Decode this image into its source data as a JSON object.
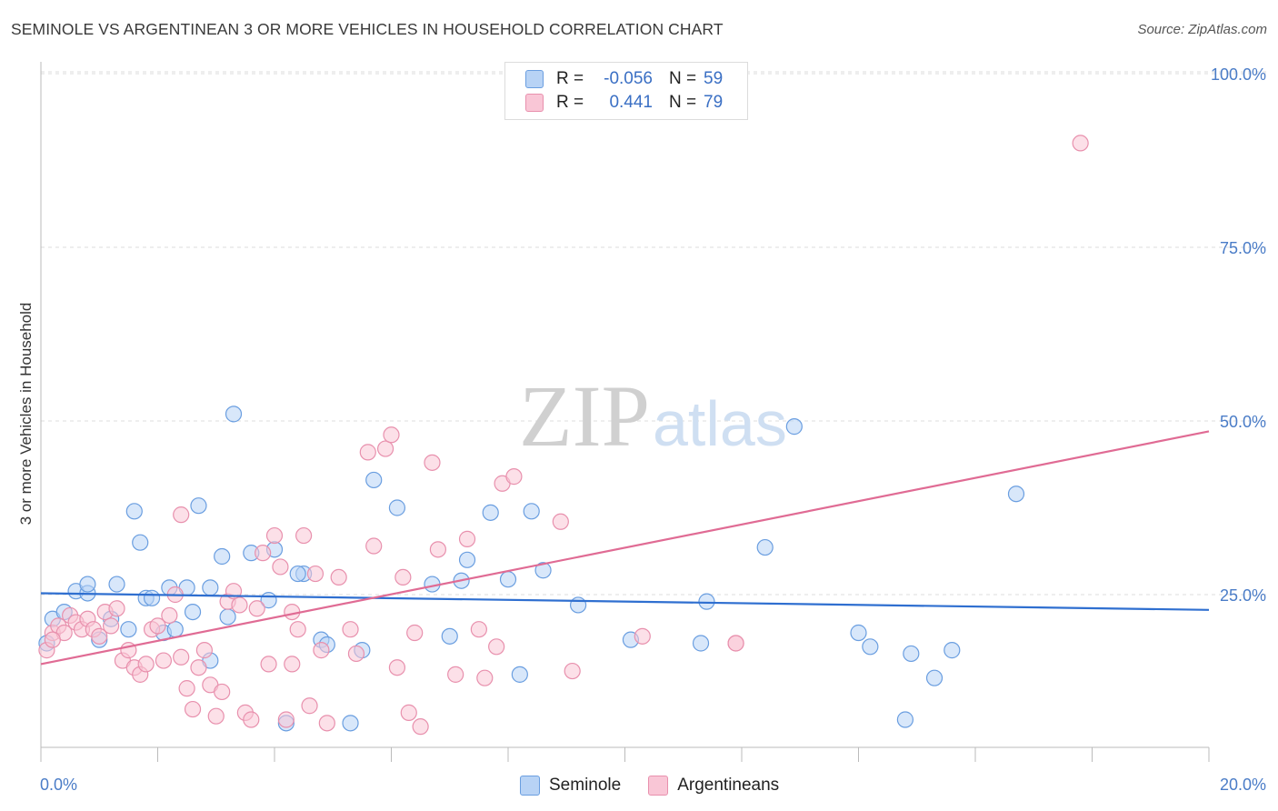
{
  "title": "SEMINOLE VS ARGENTINEAN 3 OR MORE VEHICLES IN HOUSEHOLD CORRELATION CHART",
  "source": "Source: ZipAtlas.com",
  "watermark": {
    "part1": "ZIP",
    "part2": "atlas"
  },
  "colors": {
    "seminole_fill": "#b8d3f5",
    "seminole_stroke": "#6a9ee0",
    "seminole_line": "#2f6fd0",
    "argentinean_fill": "#f9c6d6",
    "argentinean_stroke": "#e890ad",
    "argentinean_line": "#e06b94",
    "tick_color": "#4a7cc7"
  },
  "legend": {
    "rows": [
      {
        "r_label": "R =",
        "r_value": "-0.056",
        "n_label": "N =",
        "n_value": "59"
      },
      {
        "r_label": "R =",
        "r_value": "0.441",
        "n_label": "N =",
        "n_value": "79"
      }
    ]
  },
  "bottom_legend": {
    "seminole": "Seminole",
    "argentineans": "Argentineans"
  },
  "chart_data": {
    "type": "scatter",
    "ylabel": "3 or more Vehicles in Household",
    "xlim": [
      0,
      20
    ],
    "ylim": [
      0,
      105
    ],
    "x_tick_labels": [
      "0.0%",
      "20.0%"
    ],
    "y_ticks": [
      {
        "value": 25,
        "label": "25.0%"
      },
      {
        "value": 50,
        "label": "50.0%"
      },
      {
        "value": 75,
        "label": "75.0%"
      },
      {
        "value": 100,
        "label": "100.0%"
      }
    ],
    "series": [
      {
        "name": "Seminole",
        "trend": [
          [
            0,
            25.2
          ],
          [
            20,
            22.8
          ]
        ],
        "points": [
          [
            0.2,
            21.5
          ],
          [
            0.4,
            22.5
          ],
          [
            0.6,
            25.5
          ],
          [
            0.8,
            25.2
          ],
          [
            0.8,
            26.5
          ],
          [
            1.0,
            18.5
          ],
          [
            1.2,
            21.5
          ],
          [
            1.3,
            26.5
          ],
          [
            1.5,
            20.0
          ],
          [
            1.6,
            37.0
          ],
          [
            1.7,
            32.5
          ],
          [
            1.8,
            24.5
          ],
          [
            1.9,
            24.5
          ],
          [
            2.1,
            19.5
          ],
          [
            2.2,
            26.0
          ],
          [
            2.3,
            20.0
          ],
          [
            2.5,
            26.0
          ],
          [
            2.6,
            22.5
          ],
          [
            2.7,
            37.8
          ],
          [
            2.9,
            15.5
          ],
          [
            2.9,
            26.0
          ],
          [
            3.1,
            30.5
          ],
          [
            3.2,
            21.8
          ],
          [
            3.3,
            51.0
          ],
          [
            3.6,
            31.0
          ],
          [
            3.9,
            24.2
          ],
          [
            4.0,
            31.5
          ],
          [
            4.2,
            6.5
          ],
          [
            4.5,
            28.0
          ],
          [
            4.8,
            18.5
          ],
          [
            4.9,
            17.8
          ],
          [
            5.3,
            6.5
          ],
          [
            5.5,
            17.0
          ],
          [
            5.7,
            41.5
          ],
          [
            6.1,
            37.5
          ],
          [
            6.7,
            26.5
          ],
          [
            7.0,
            19.0
          ],
          [
            7.2,
            27.0
          ],
          [
            7.3,
            30.0
          ],
          [
            7.7,
            36.8
          ],
          [
            8.0,
            27.2
          ],
          [
            8.2,
            13.5
          ],
          [
            8.4,
            37.0
          ],
          [
            8.6,
            28.5
          ],
          [
            9.2,
            23.5
          ],
          [
            10.1,
            18.5
          ],
          [
            11.3,
            18.0
          ],
          [
            11.4,
            24.0
          ],
          [
            12.4,
            31.8
          ],
          [
            12.9,
            49.2
          ],
          [
            14.0,
            19.5
          ],
          [
            14.2,
            17.5
          ],
          [
            14.8,
            7.0
          ],
          [
            14.9,
            16.5
          ],
          [
            15.3,
            13.0
          ],
          [
            15.6,
            17.0
          ],
          [
            16.7,
            39.5
          ],
          [
            0.1,
            18.0
          ],
          [
            4.4,
            28.0
          ]
        ]
      },
      {
        "name": "Argentineans",
        "trend": [
          [
            0,
            15.0
          ],
          [
            20,
            48.5
          ]
        ],
        "points": [
          [
            0.1,
            17.0
          ],
          [
            0.2,
            19.5
          ],
          [
            0.3,
            20.5
          ],
          [
            0.4,
            19.5
          ],
          [
            0.5,
            22.0
          ],
          [
            0.6,
            21.0
          ],
          [
            0.7,
            20.0
          ],
          [
            0.8,
            21.5
          ],
          [
            0.9,
            20.0
          ],
          [
            1.0,
            19.0
          ],
          [
            1.1,
            22.5
          ],
          [
            1.2,
            20.5
          ],
          [
            1.3,
            23.0
          ],
          [
            1.4,
            15.5
          ],
          [
            1.5,
            17.0
          ],
          [
            1.6,
            14.5
          ],
          [
            1.7,
            13.5
          ],
          [
            1.8,
            15.0
          ],
          [
            1.9,
            20.0
          ],
          [
            2.0,
            20.5
          ],
          [
            2.1,
            15.5
          ],
          [
            2.2,
            22.0
          ],
          [
            2.3,
            25.0
          ],
          [
            2.4,
            16.0
          ],
          [
            2.5,
            11.5
          ],
          [
            2.6,
            8.5
          ],
          [
            2.7,
            14.5
          ],
          [
            2.8,
            17.0
          ],
          [
            2.9,
            12.0
          ],
          [
            3.0,
            7.5
          ],
          [
            3.1,
            11.0
          ],
          [
            3.2,
            24.0
          ],
          [
            3.3,
            25.5
          ],
          [
            3.4,
            23.5
          ],
          [
            3.5,
            8.0
          ],
          [
            3.6,
            7.0
          ],
          [
            3.7,
            23.0
          ],
          [
            3.8,
            31.0
          ],
          [
            3.9,
            15.0
          ],
          [
            4.0,
            33.5
          ],
          [
            4.1,
            29.0
          ],
          [
            4.2,
            7.0
          ],
          [
            4.3,
            22.5
          ],
          [
            4.4,
            20.0
          ],
          [
            4.5,
            33.5
          ],
          [
            4.6,
            9.0
          ],
          [
            4.7,
            28.0
          ],
          [
            4.8,
            17.0
          ],
          [
            4.9,
            6.5
          ],
          [
            5.1,
            27.5
          ],
          [
            5.3,
            20.0
          ],
          [
            5.4,
            16.5
          ],
          [
            5.6,
            45.5
          ],
          [
            5.7,
            32.0
          ],
          [
            5.9,
            46.0
          ],
          [
            6.0,
            48.0
          ],
          [
            6.1,
            14.5
          ],
          [
            6.2,
            27.5
          ],
          [
            6.3,
            8.0
          ],
          [
            6.4,
            19.5
          ],
          [
            6.5,
            6.0
          ],
          [
            6.7,
            44.0
          ],
          [
            6.8,
            31.5
          ],
          [
            7.1,
            13.5
          ],
          [
            7.3,
            33.0
          ],
          [
            7.5,
            20.0
          ],
          [
            7.6,
            13.0
          ],
          [
            7.8,
            17.5
          ],
          [
            7.9,
            41.0
          ],
          [
            8.1,
            42.0
          ],
          [
            8.9,
            35.5
          ],
          [
            9.1,
            14.0
          ],
          [
            10.3,
            19.0
          ],
          [
            11.9,
            18.0
          ],
          [
            11.9,
            18.0
          ],
          [
            17.8,
            90.0
          ],
          [
            2.4,
            36.5
          ],
          [
            0.2,
            18.5
          ],
          [
            4.3,
            15.0
          ]
        ]
      }
    ]
  }
}
